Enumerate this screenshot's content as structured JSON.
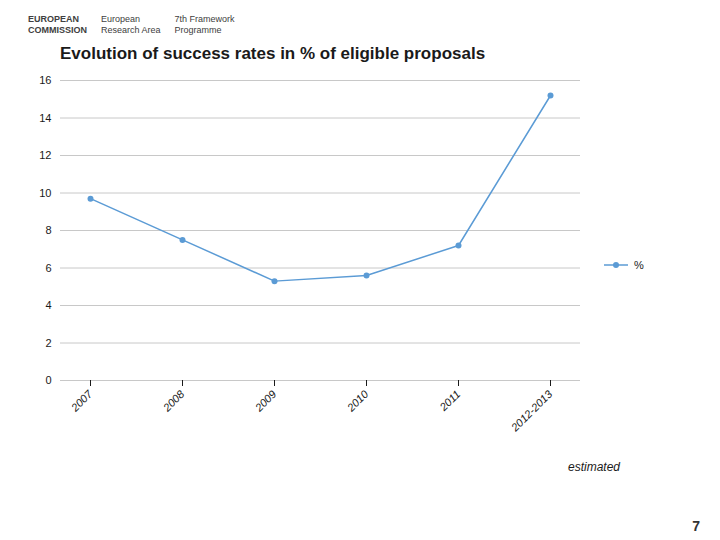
{
  "chart_data": {
    "type": "line",
    "title": "Evolution of success rates in % of eligible proposals",
    "categories": [
      "2007",
      "2008",
      "2009",
      "2010",
      "2011",
      "2012-2013"
    ],
    "series": [
      {
        "name": "%",
        "color": "#5b9bd5",
        "values": [
          9.7,
          7.5,
          5.3,
          5.6,
          7.2,
          15.2
        ]
      }
    ],
    "marker": "circle",
    "ylim": [
      0,
      16
    ],
    "yticks": [
      0,
      2,
      4,
      6,
      8,
      10,
      12,
      14,
      16
    ],
    "grid": true,
    "legend": "right",
    "annotations": [
      "EUROPEAN",
      "COMMISSION",
      "European",
      "Research Area",
      "7th Framework",
      "Programme",
      "estimated",
      "7"
    ]
  }
}
